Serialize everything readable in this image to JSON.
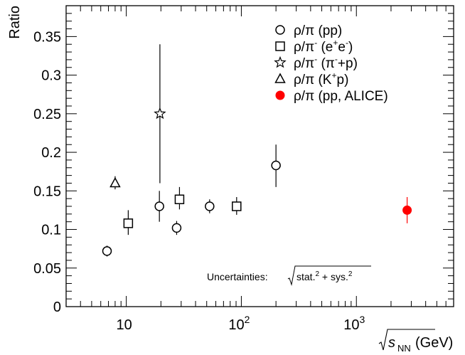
{
  "chart_data": {
    "type": "scatter",
    "title": "",
    "xlabel": "(GeV)",
    "xlabel_var": "s",
    "xlabel_sub": "NN",
    "ylabel": "Ratio",
    "xscale": "log",
    "xlim": [
      3.0,
      7000
    ],
    "ylim": [
      0,
      0.39
    ],
    "y_ticks": [
      "0",
      "0.05",
      "0.1",
      "0.15",
      "0.2",
      "0.25",
      "0.3",
      "0.35"
    ],
    "x_ticks": [
      {
        "base": "10",
        "exp": ""
      },
      {
        "base": "10",
        "exp": "2"
      },
      {
        "base": "10",
        "exp": "3"
      }
    ],
    "grid": false,
    "legend_position": "top-right",
    "series": [
      {
        "name": "ρ/π (pp)",
        "label_parts": [
          "ρ/π (pp)"
        ],
        "marker": "open-circle",
        "color": "#000000",
        "points": [
          {
            "x": 6.8,
            "y": 0.072,
            "lo": 0.065,
            "hi": 0.079
          },
          {
            "x": 19.4,
            "y": 0.13,
            "lo": 0.11,
            "hi": 0.15
          },
          {
            "x": 27.4,
            "y": 0.102,
            "lo": 0.093,
            "hi": 0.111
          },
          {
            "x": 53,
            "y": 0.13,
            "lo": 0.121,
            "hi": 0.139
          },
          {
            "x": 200,
            "y": 0.183,
            "lo": 0.155,
            "hi": 0.21
          }
        ]
      },
      {
        "name": "ρ/π⁻ (e⁺e⁻)",
        "label_parts": [
          "ρ/π",
          "-",
          " (e",
          "+",
          "e",
          "-",
          ")"
        ],
        "marker": "open-square",
        "color": "#000000",
        "points": [
          {
            "x": 10.4,
            "y": 0.108,
            "lo": 0.093,
            "hi": 0.125
          },
          {
            "x": 29,
            "y": 0.139,
            "lo": 0.126,
            "hi": 0.155
          },
          {
            "x": 91,
            "y": 0.13,
            "lo": 0.119,
            "hi": 0.142
          }
        ]
      },
      {
        "name": "ρ/π⁻ (π⁻+p)",
        "label_parts": [
          "ρ/π",
          "-",
          " (π",
          "-",
          "+p)"
        ],
        "marker": "open-star",
        "color": "#000000",
        "points": [
          {
            "x": 19.6,
            "y": 0.25,
            "lo": 0.16,
            "hi": 0.34
          }
        ]
      },
      {
        "name": "ρ/π (K⁺p)",
        "label_parts": [
          "ρ/π (K",
          "+",
          "p)"
        ],
        "marker": "open-triangle",
        "color": "#000000",
        "points": [
          {
            "x": 8.0,
            "y": 0.16,
            "lo": 0.152,
            "hi": 0.169
          }
        ]
      },
      {
        "name": "ρ/π (pp, ALICE)",
        "label_parts": [
          "ρ/π (pp, ALICE)"
        ],
        "marker": "filled-circle",
        "color": "#ff0000",
        "points": [
          {
            "x": 2760,
            "y": 0.125,
            "lo": 0.108,
            "hi": 0.142
          }
        ]
      }
    ],
    "annotation": {
      "prefix": "Uncertainties:",
      "parts": [
        "stat.",
        "2",
        " + sys.",
        "2"
      ]
    }
  }
}
